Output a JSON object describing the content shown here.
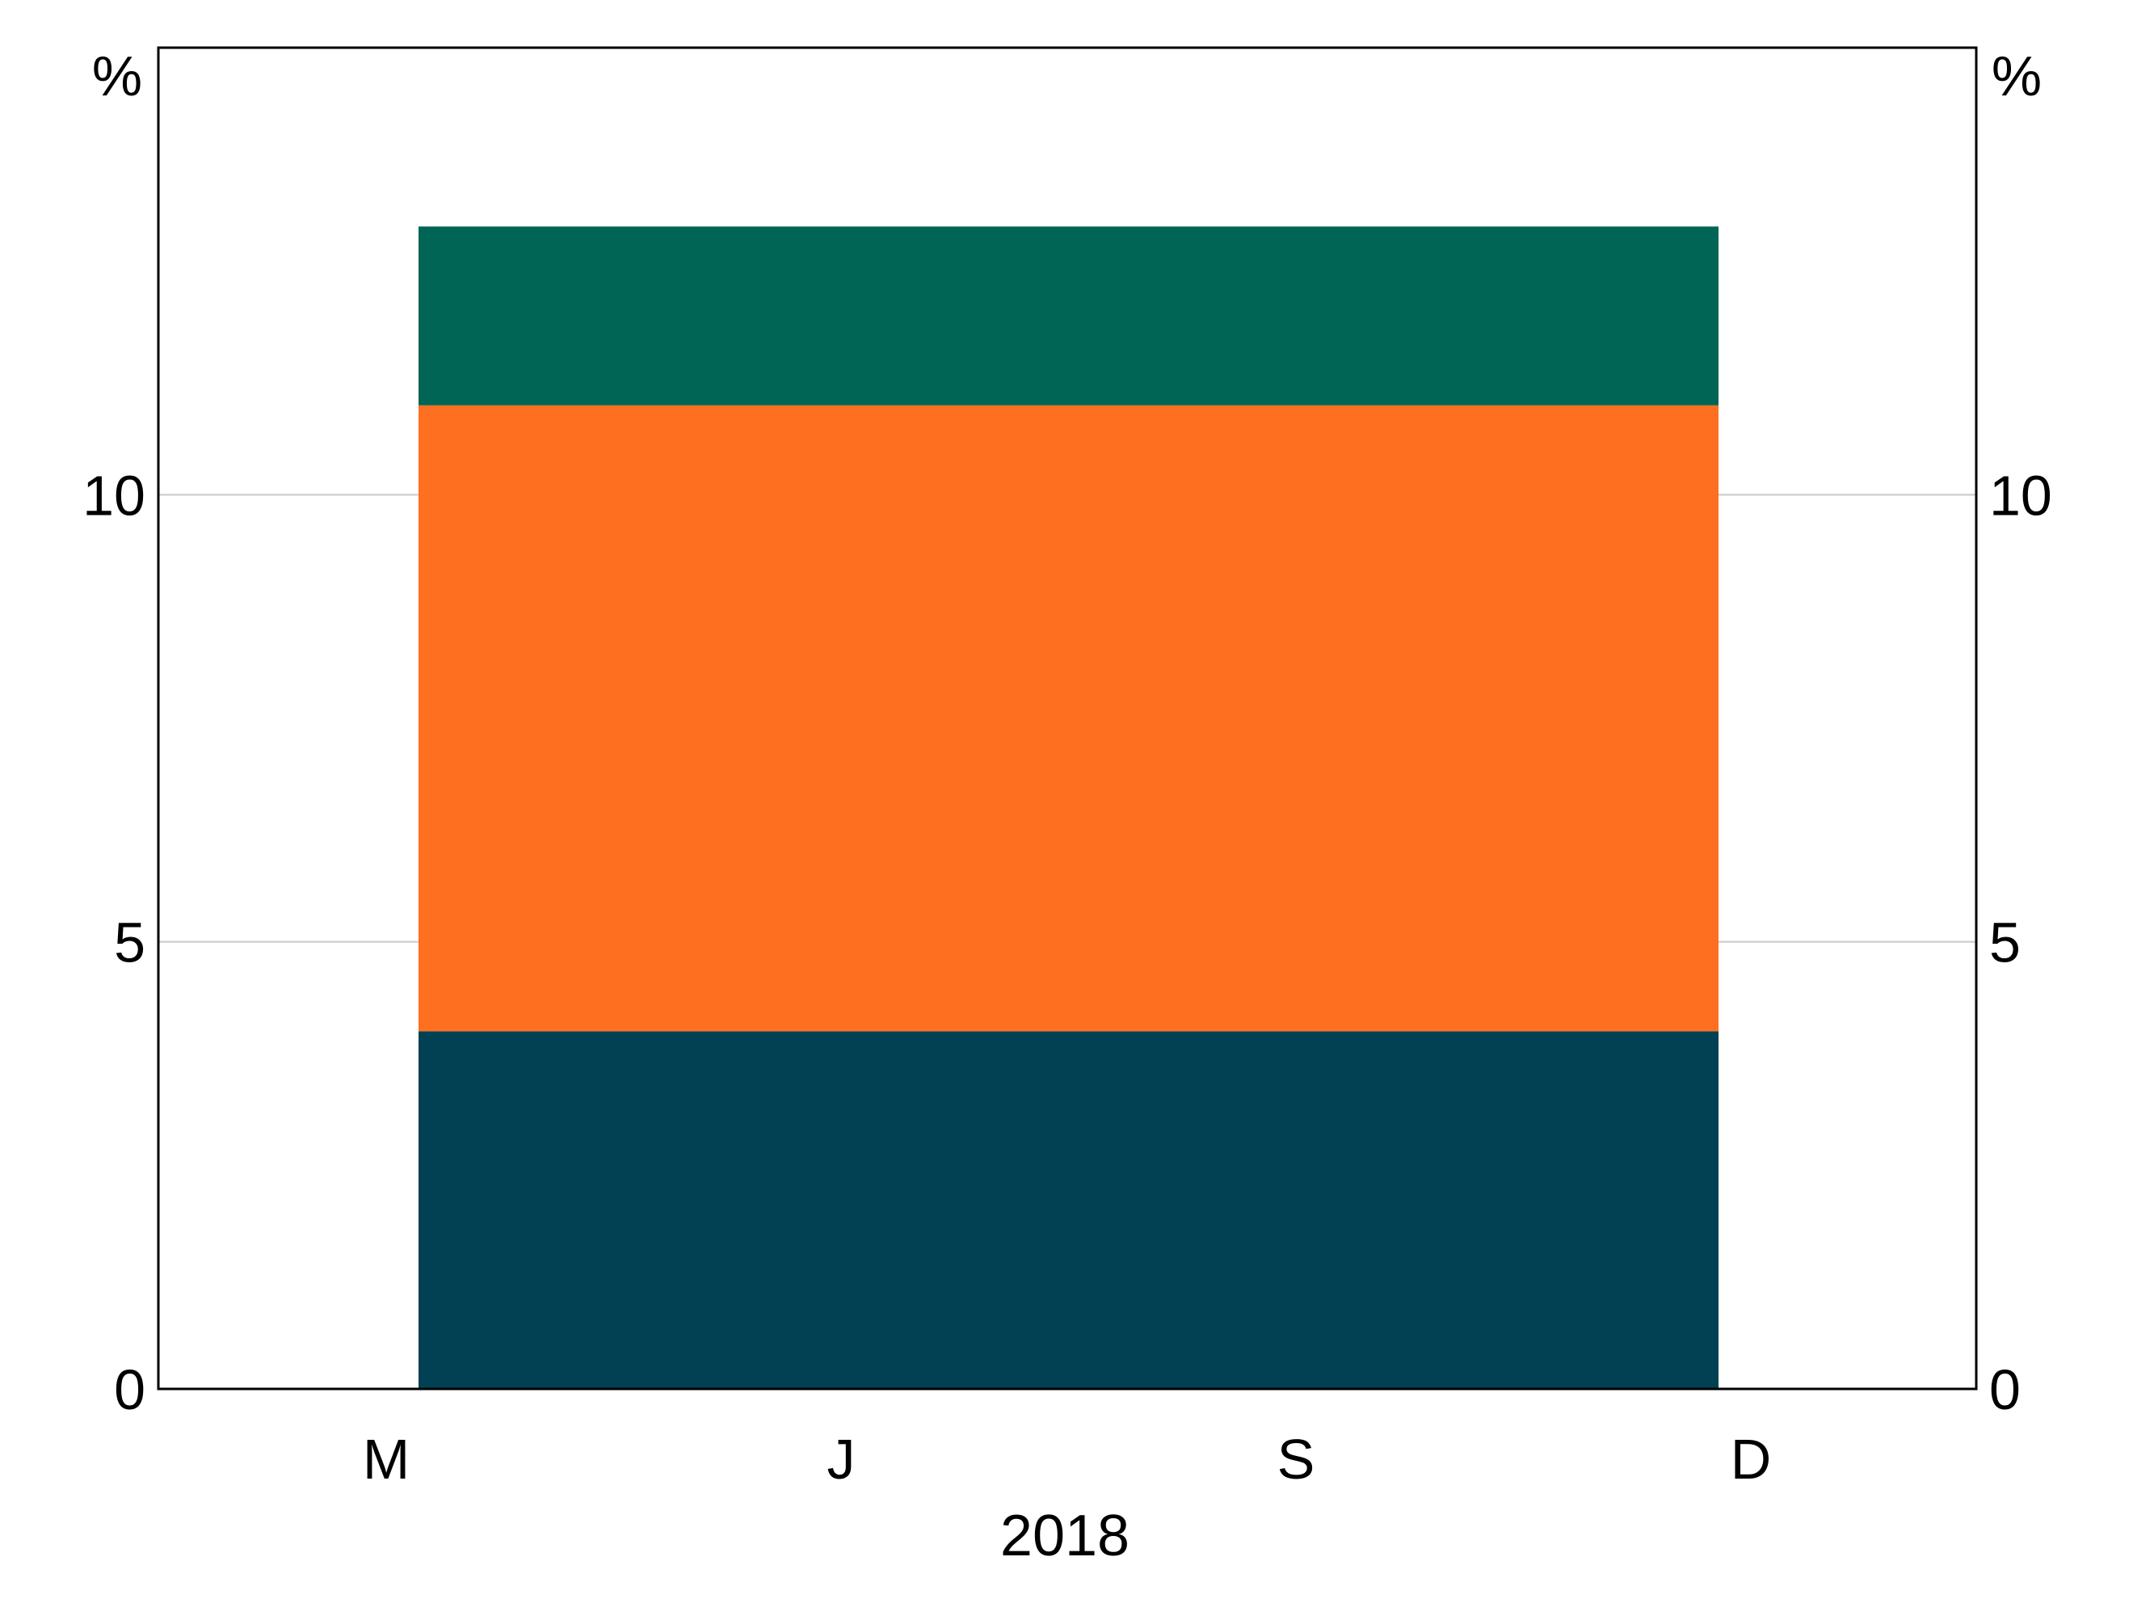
{
  "chart_data": {
    "type": "bar",
    "stacked": true,
    "grid": true,
    "legend": "none",
    "y_unit_left": "%",
    "y_unit_right": "%",
    "ylim": [
      0,
      15
    ],
    "yticks": [
      "0",
      "5",
      "10"
    ],
    "yticks_values": [
      0,
      5,
      10
    ],
    "xticks": [
      "M",
      "J",
      "S",
      "D"
    ],
    "xlabel": "2018",
    "bar_span": [
      "M",
      "D"
    ],
    "series": [
      {
        "values": [
          4.0
        ],
        "color": "#024153"
      },
      {
        "values": [
          7.0
        ],
        "color": "#ff6f20"
      },
      {
        "values": [
          2.0
        ],
        "color": "#006555"
      }
    ],
    "stack_totals": [
      4.0,
      11.0,
      13.0
    ]
  }
}
